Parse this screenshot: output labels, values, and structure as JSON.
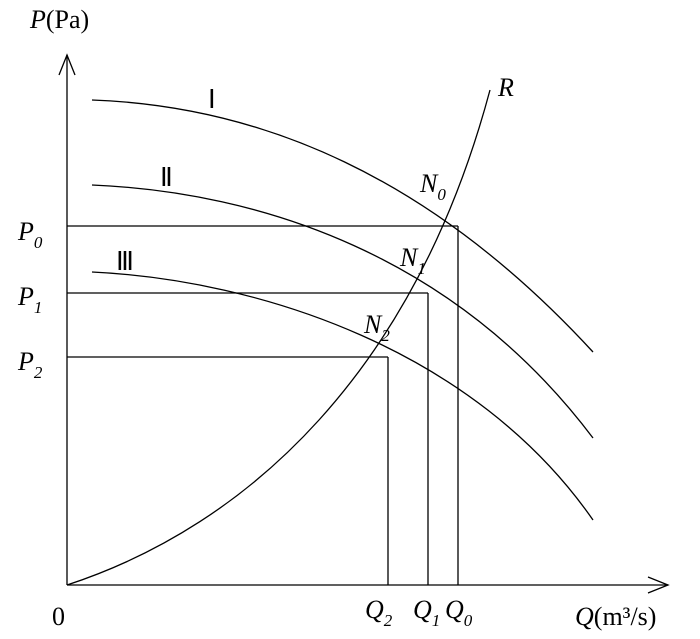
{
  "axes": {
    "y_label": {
      "symbol": "P",
      "unit": "(Pa)"
    },
    "x_label": {
      "symbol": "Q",
      "unit": "(m³/s)"
    },
    "origin": "0"
  },
  "curves": [
    {
      "label": "Ⅰ"
    },
    {
      "label": "Ⅱ"
    },
    {
      "label": "Ⅲ"
    },
    {
      "label": "R"
    }
  ],
  "points": [
    {
      "base": "N",
      "sub": "0"
    },
    {
      "base": "N",
      "sub": "1"
    },
    {
      "base": "N",
      "sub": "2"
    }
  ],
  "pressures": [
    {
      "base": "P",
      "sub": "0"
    },
    {
      "base": "P",
      "sub": "1"
    },
    {
      "base": "P",
      "sub": "2"
    }
  ],
  "flows": [
    {
      "base": "Q",
      "sub": "0"
    },
    {
      "base": "Q",
      "sub": "1"
    },
    {
      "base": "Q",
      "sub": "2"
    }
  ]
}
